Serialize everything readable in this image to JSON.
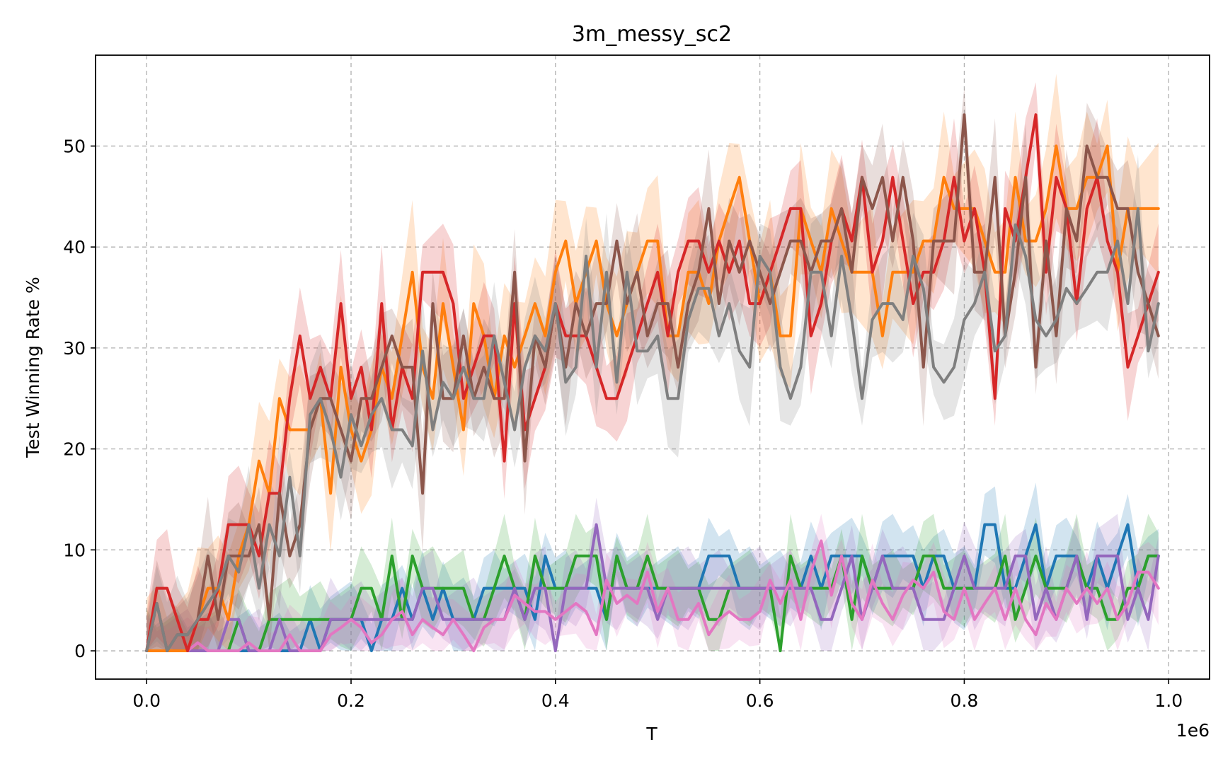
{
  "chart_data": {
    "type": "line",
    "title": "3m_messy_sc2",
    "xlabel": "T",
    "ylabel": "Test Winning Rate %",
    "x_offset_label": "1e6",
    "xlim": [
      -0.05,
      1.04
    ],
    "ylim": [
      -2.8,
      59
    ],
    "xticks": [
      0.0,
      0.2,
      0.4,
      0.6,
      0.8,
      1.0
    ],
    "xtick_labels": [
      "0.0",
      "0.2",
      "0.4",
      "0.6",
      "0.8",
      "1.0"
    ],
    "yticks": [
      0,
      10,
      20,
      30,
      40,
      50
    ],
    "ytick_labels": [
      "0",
      "10",
      "20",
      "30",
      "40",
      "50"
    ],
    "grid": true,
    "x": [
      0.0,
      0.01,
      0.02,
      0.03,
      0.04,
      0.05,
      0.06,
      0.07,
      0.08,
      0.09,
      0.1,
      0.11,
      0.12,
      0.13,
      0.14,
      0.15,
      0.16,
      0.17,
      0.18,
      0.19,
      0.2,
      0.21,
      0.22,
      0.23,
      0.24,
      0.25,
      0.26,
      0.27,
      0.28,
      0.29,
      0.3,
      0.31,
      0.32,
      0.33,
      0.34,
      0.35,
      0.36,
      0.37,
      0.38,
      0.39,
      0.4,
      0.41,
      0.42,
      0.43,
      0.44,
      0.45,
      0.46,
      0.47,
      0.48,
      0.49,
      0.5,
      0.51,
      0.52,
      0.53,
      0.54,
      0.55,
      0.56,
      0.57,
      0.58,
      0.59,
      0.6,
      0.61,
      0.62,
      0.63,
      0.64,
      0.65,
      0.66,
      0.67,
      0.68,
      0.69,
      0.7,
      0.71,
      0.72,
      0.73,
      0.74,
      0.75,
      0.76,
      0.77,
      0.78,
      0.79,
      0.8,
      0.81,
      0.82,
      0.83,
      0.84,
      0.85,
      0.86,
      0.87,
      0.88,
      0.89,
      0.9,
      0.91,
      0.92,
      0.93,
      0.94,
      0.95,
      0.96,
      0.97,
      0.98,
      0.99
    ],
    "series": [
      {
        "color": "#1f77b4",
        "band_width": 3.2,
        "values": [
          0,
          0,
          0,
          0,
          0,
          0,
          0,
          0,
          0,
          0,
          0,
          0,
          0,
          0,
          0,
          0,
          3.1,
          0,
          3.1,
          3.1,
          3.1,
          3.1,
          0,
          3.1,
          3.1,
          6.2,
          3.1,
          6.2,
          3.1,
          6.2,
          3.1,
          3.1,
          3.1,
          6.2,
          6.2,
          6.2,
          6.2,
          6.2,
          3.1,
          9.4,
          6.2,
          6.2,
          6.2,
          6.2,
          6.2,
          3.1,
          9.4,
          6.2,
          6.2,
          6.2,
          6.2,
          6.2,
          6.2,
          6.2,
          6.2,
          9.4,
          9.4,
          9.4,
          6.2,
          6.2,
          6.2,
          6.2,
          6.2,
          6.2,
          6.2,
          9.4,
          6.2,
          9.4,
          9.4,
          9.4,
          9.4,
          6.2,
          9.4,
          9.4,
          9.4,
          9.4,
          6.2,
          9.4,
          9.4,
          6.2,
          6.2,
          6.2,
          12.5,
          12.5,
          6.2,
          6.2,
          9.4,
          12.5,
          6.2,
          9.4,
          9.4,
          9.4,
          6.2,
          9.4,
          6.2,
          9.4,
          12.5,
          6.2,
          9.4,
          9.4
        ]
      },
      {
        "color": "#2ca02c",
        "band_width": 3.2,
        "values": [
          0,
          0,
          0,
          0,
          0,
          0,
          0,
          0,
          0,
          3.1,
          0,
          0,
          3.1,
          3.1,
          3.1,
          3.1,
          3.1,
          3.1,
          3.1,
          3.1,
          3.1,
          6.2,
          6.2,
          3.1,
          9.4,
          3.1,
          9.4,
          6.2,
          6.2,
          6.2,
          6.2,
          6.2,
          3.1,
          3.1,
          6.2,
          9.4,
          6.2,
          3.1,
          9.4,
          6.2,
          6.2,
          6.2,
          9.4,
          9.4,
          9.4,
          3.1,
          9.4,
          6.2,
          6.2,
          9.4,
          6.2,
          6.2,
          6.2,
          6.2,
          6.2,
          3.1,
          3.1,
          6.2,
          6.2,
          6.2,
          6.2,
          6.2,
          0,
          9.4,
          6.2,
          6.2,
          6.2,
          6.2,
          9.4,
          3.1,
          9.4,
          6.2,
          6.2,
          6.2,
          6.2,
          6.2,
          9.4,
          9.4,
          6.2,
          6.2,
          6.2,
          6.2,
          6.2,
          6.2,
          9.4,
          3.1,
          6.2,
          9.4,
          6.2,
          6.2,
          6.2,
          9.4,
          6.2,
          6.2,
          3.1,
          3.1,
          6.2,
          6.2,
          9.4,
          9.4
        ]
      },
      {
        "color": "#9467bd",
        "band_width": 3.2,
        "values": [
          0,
          0,
          0,
          0,
          0,
          0,
          0,
          0,
          3.1,
          3.1,
          0,
          0,
          0,
          3.1,
          0,
          0,
          0,
          0,
          3.1,
          3.1,
          3.1,
          3.1,
          3.1,
          3.1,
          3.1,
          3.1,
          3.1,
          6.2,
          6.2,
          3.1,
          3.1,
          3.1,
          3.1,
          3.1,
          3.1,
          3.1,
          6.2,
          3.1,
          6.2,
          6.2,
          0,
          6.2,
          6.2,
          6.2,
          12.5,
          6.2,
          6.2,
          6.2,
          6.2,
          6.2,
          3.1,
          6.2,
          6.2,
          6.2,
          6.2,
          6.2,
          6.2,
          6.2,
          6.2,
          6.2,
          6.2,
          6.2,
          6.2,
          6.2,
          6.2,
          6.2,
          3.1,
          3.1,
          6.2,
          9.4,
          3.1,
          6.2,
          9.4,
          6.2,
          6.2,
          6.2,
          3.1,
          3.1,
          3.1,
          6.2,
          9.4,
          6.2,
          6.2,
          6.2,
          6.2,
          9.4,
          9.4,
          3.1,
          6.2,
          3.1,
          6.2,
          9.4,
          3.1,
          9.4,
          9.4,
          9.4,
          3.1,
          6.2,
          3.1,
          9.4
        ]
      },
      {
        "color": "#e377c2",
        "band_width": 2.8,
        "values": [
          0,
          0,
          0,
          0,
          0,
          0.8,
          0,
          0,
          0,
          0,
          0.8,
          0,
          0,
          0,
          1.6,
          0,
          0,
          0,
          1.6,
          2.3,
          3.1,
          2.3,
          0.8,
          1.6,
          3.1,
          3.9,
          1.6,
          3.1,
          2.3,
          1.6,
          3.1,
          1.6,
          0,
          2.3,
          3.1,
          3.1,
          5.5,
          4.7,
          3.9,
          3.9,
          3.1,
          3.9,
          4.7,
          3.9,
          1.6,
          7.0,
          4.7,
          5.5,
          4.7,
          7.8,
          3.9,
          6.2,
          3.1,
          3.1,
          4.7,
          1.6,
          3.1,
          3.9,
          3.1,
          3.1,
          3.9,
          7.0,
          4.7,
          7.0,
          3.1,
          7.8,
          10.9,
          5.5,
          9.4,
          4.7,
          3.1,
          7.0,
          4.7,
          3.1,
          5.5,
          7.0,
          6.2,
          7.8,
          3.9,
          3.1,
          6.2,
          3.1,
          4.7,
          6.2,
          3.1,
          6.2,
          3.1,
          1.6,
          4.7,
          3.1,
          6.2,
          4.7,
          6.2,
          4.7,
          6.2,
          3.1,
          4.7,
          7.8,
          7.8,
          6.2
        ]
      },
      {
        "color": "#ff7f0e",
        "band_width": 5.5,
        "values": [
          0,
          0,
          0,
          0,
          0,
          3.1,
          6.2,
          6.2,
          3.1,
          9.4,
          12.5,
          18.8,
          15.6,
          25.0,
          21.9,
          21.9,
          21.9,
          25.0,
          15.6,
          28.1,
          21.9,
          18.8,
          21.9,
          28.1,
          25.0,
          31.2,
          37.5,
          28.1,
          25.0,
          34.4,
          28.1,
          21.9,
          34.4,
          31.2,
          25.0,
          31.2,
          28.1,
          31.2,
          34.4,
          31.2,
          37.5,
          40.6,
          34.4,
          37.5,
          40.6,
          34.4,
          31.2,
          34.4,
          37.5,
          40.6,
          40.6,
          31.2,
          31.2,
          37.5,
          37.5,
          34.4,
          40.6,
          43.8,
          46.9,
          40.6,
          34.4,
          37.5,
          31.2,
          31.2,
          43.8,
          40.6,
          37.5,
          43.8,
          40.6,
          37.5,
          37.5,
          37.5,
          31.2,
          37.5,
          37.5,
          37.5,
          40.6,
          40.6,
          46.9,
          43.8,
          43.8,
          43.8,
          40.6,
          37.5,
          37.5,
          46.9,
          40.6,
          40.6,
          43.8,
          50.0,
          43.8,
          43.8,
          46.9,
          46.9,
          50.0,
          37.5,
          43.8,
          43.8,
          43.8,
          43.8
        ]
      },
      {
        "color": "#d62728",
        "band_width": 4.5,
        "values": [
          0,
          6.2,
          6.2,
          3.1,
          0,
          3.1,
          3.1,
          6.2,
          12.5,
          12.5,
          12.5,
          9.4,
          15.6,
          15.6,
          25.0,
          31.2,
          25.0,
          28.1,
          25.0,
          34.4,
          25.0,
          28.1,
          21.9,
          34.4,
          21.9,
          28.1,
          25.0,
          37.5,
          37.5,
          37.5,
          34.4,
          25.0,
          28.1,
          31.2,
          31.2,
          18.8,
          34.4,
          21.9,
          25.0,
          28.1,
          34.4,
          31.2,
          31.2,
          31.2,
          28.1,
          25.0,
          25.0,
          28.1,
          31.2,
          34.4,
          37.5,
          31.2,
          37.5,
          40.6,
          40.6,
          37.5,
          40.6,
          37.5,
          40.6,
          34.4,
          34.4,
          37.5,
          40.6,
          43.8,
          43.8,
          31.2,
          34.4,
          40.6,
          43.8,
          40.6,
          46.9,
          37.5,
          40.6,
          46.9,
          40.6,
          34.4,
          37.5,
          37.5,
          40.6,
          46.9,
          40.6,
          43.8,
          37.5,
          25.0,
          43.8,
          40.6,
          46.9,
          53.1,
          37.5,
          46.9,
          43.8,
          34.4,
          43.8,
          46.9,
          40.6,
          37.5,
          28.1,
          31.2,
          34.4,
          37.5
        ]
      },
      {
        "color": "#8c564b",
        "band_width": 4.5,
        "values": [
          0,
          4.7,
          0,
          1.6,
          1.6,
          3.1,
          9.4,
          3.1,
          9.4,
          9.4,
          9.4,
          12.5,
          3.1,
          15.6,
          9.4,
          12.5,
          21.9,
          25.0,
          25.0,
          21.9,
          18.8,
          25.0,
          25.0,
          28.1,
          31.2,
          28.1,
          28.1,
          15.6,
          34.4,
          25.0,
          25.0,
          31.2,
          25.0,
          28.1,
          25.0,
          25.0,
          37.5,
          18.8,
          31.2,
          28.1,
          34.4,
          28.1,
          34.4,
          31.2,
          34.4,
          34.4,
          40.6,
          34.4,
          37.5,
          31.2,
          34.4,
          34.4,
          28.1,
          34.4,
          37.5,
          43.8,
          34.4,
          40.6,
          37.5,
          40.6,
          37.5,
          34.4,
          37.5,
          40.6,
          40.6,
          37.5,
          40.6,
          40.6,
          43.8,
          37.5,
          46.9,
          43.8,
          46.9,
          40.6,
          46.9,
          40.6,
          28.1,
          40.6,
          40.6,
          40.6,
          53.1,
          37.5,
          37.5,
          46.9,
          31.2,
          37.5,
          46.9,
          28.1,
          40.6,
          31.2,
          43.8,
          40.6,
          50.0,
          46.9,
          46.9,
          43.8,
          43.8,
          37.5,
          34.4,
          31.2
        ]
      },
      {
        "color": "#7f7f7f",
        "band_width": 4.5,
        "values": [
          0,
          4.7,
          0,
          1.6,
          1.6,
          3.1,
          4.7,
          6.2,
          9.4,
          7.8,
          12.5,
          6.2,
          12.5,
          9.4,
          17.2,
          9.4,
          23.4,
          25.0,
          21.9,
          17.2,
          23.4,
          20.3,
          23.4,
          25.0,
          21.9,
          21.9,
          20.3,
          29.7,
          21.9,
          26.6,
          25.0,
          28.1,
          25.0,
          25.0,
          31.2,
          26.6,
          21.9,
          28.1,
          31.2,
          29.7,
          34.4,
          26.6,
          28.1,
          39.1,
          28.1,
          37.5,
          26.6,
          37.5,
          29.7,
          29.7,
          31.2,
          25.0,
          25.0,
          32.8,
          35.9,
          35.9,
          31.2,
          34.4,
          29.7,
          28.1,
          39.1,
          37.5,
          28.1,
          25.0,
          28.1,
          37.5,
          37.5,
          31.2,
          39.1,
          32.8,
          25.0,
          32.8,
          34.4,
          34.4,
          32.8,
          39.1,
          35.9,
          28.1,
          26.6,
          28.1,
          32.8,
          34.4,
          37.5,
          29.7,
          31.2,
          42.2,
          39.1,
          32.8,
          31.2,
          32.8,
          35.9,
          34.4,
          35.9,
          37.5,
          37.5,
          40.6,
          34.4,
          43.8,
          29.7,
          34.4
        ]
      }
    ]
  }
}
